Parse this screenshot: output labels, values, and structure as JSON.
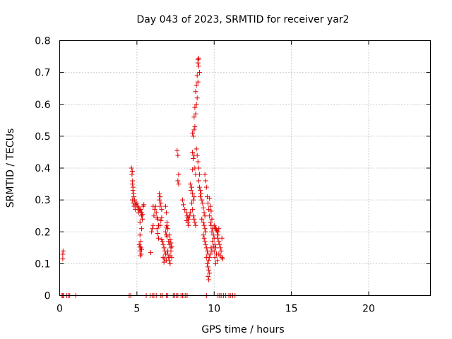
{
  "chart_data": {
    "type": "scatter",
    "title": "Day 043 of 2023, SRMTID for receiver yar2",
    "xlabel": "GPS time / hours",
    "ylabel": "SRMTID / TECUs",
    "xlim": [
      0,
      24
    ],
    "ylim": [
      0,
      0.8
    ],
    "grid": true,
    "marker": "plus",
    "color": "#e00000",
    "x_ticks": [
      {
        "value": 0,
        "label": "0"
      },
      {
        "value": 5,
        "label": "5"
      },
      {
        "value": 10,
        "label": "10"
      },
      {
        "value": 15,
        "label": "15"
      },
      {
        "value": 20,
        "label": "20"
      }
    ],
    "y_ticks": [
      {
        "value": 0,
        "label": "0"
      },
      {
        "value": 0.1,
        "label": "0.1"
      },
      {
        "value": 0.2,
        "label": "0.2"
      },
      {
        "value": 0.3,
        "label": "0.3"
      },
      {
        "value": 0.4,
        "label": "0.4"
      },
      {
        "value": 0.5,
        "label": "0.5"
      },
      {
        "value": 0.6,
        "label": "0.6"
      },
      {
        "value": 0.7,
        "label": "0.7"
      },
      {
        "value": 0.8,
        "label": "0.8"
      }
    ],
    "series": [
      {
        "name": "yar2",
        "points": [
          [
            0.15,
            0.0
          ],
          [
            0.2,
            0.0
          ],
          [
            0.25,
            0.0
          ],
          [
            0.45,
            0.0
          ],
          [
            0.55,
            0.0
          ],
          [
            0.65,
            0.0
          ],
          [
            1.05,
            0.0
          ],
          [
            0.2,
            0.115
          ],
          [
            0.2,
            0.13
          ],
          [
            0.22,
            0.14
          ],
          [
            4.5,
            0.0
          ],
          [
            4.6,
            0.0
          ],
          [
            5.6,
            0.0
          ],
          [
            5.85,
            0.0
          ],
          [
            6.0,
            0.0
          ],
          [
            6.1,
            0.0
          ],
          [
            6.25,
            0.0
          ],
          [
            6.55,
            0.0
          ],
          [
            6.65,
            0.0
          ],
          [
            6.9,
            0.0
          ],
          [
            7.0,
            0.0
          ],
          [
            7.35,
            0.0
          ],
          [
            7.45,
            0.0
          ],
          [
            7.55,
            0.0
          ],
          [
            7.65,
            0.0
          ],
          [
            7.85,
            0.0
          ],
          [
            7.95,
            0.0
          ],
          [
            8.05,
            0.0
          ],
          [
            8.15,
            0.0
          ],
          [
            8.25,
            0.0
          ],
          [
            9.5,
            0.0
          ],
          [
            10.25,
            0.0
          ],
          [
            10.35,
            0.0
          ],
          [
            10.45,
            0.0
          ],
          [
            10.6,
            0.0
          ],
          [
            10.75,
            0.0
          ],
          [
            10.95,
            0.0
          ],
          [
            11.05,
            0.0
          ],
          [
            11.2,
            0.0
          ],
          [
            11.35,
            0.0
          ],
          [
            4.65,
            0.4
          ],
          [
            4.7,
            0.39
          ],
          [
            4.68,
            0.38
          ],
          [
            4.72,
            0.36
          ],
          [
            4.7,
            0.35
          ],
          [
            4.75,
            0.34
          ],
          [
            4.74,
            0.33
          ],
          [
            4.78,
            0.32
          ],
          [
            4.8,
            0.31
          ],
          [
            4.7,
            0.3
          ],
          [
            4.85,
            0.3
          ],
          [
            4.9,
            0.29
          ],
          [
            4.75,
            0.29
          ],
          [
            4.95,
            0.285
          ],
          [
            5.0,
            0.29
          ],
          [
            4.82,
            0.28
          ],
          [
            5.05,
            0.28
          ],
          [
            5.1,
            0.275
          ],
          [
            5.15,
            0.27
          ],
          [
            4.9,
            0.27
          ],
          [
            5.2,
            0.265
          ],
          [
            5.25,
            0.27
          ],
          [
            5.3,
            0.26
          ],
          [
            5.35,
            0.255
          ],
          [
            5.1,
            0.26
          ],
          [
            5.4,
            0.28
          ],
          [
            5.45,
            0.285
          ],
          [
            5.3,
            0.25
          ],
          [
            5.35,
            0.24
          ],
          [
            5.2,
            0.23
          ],
          [
            5.3,
            0.21
          ],
          [
            5.2,
            0.19
          ],
          [
            5.25,
            0.17
          ],
          [
            5.15,
            0.16
          ],
          [
            5.2,
            0.155
          ],
          [
            5.25,
            0.15
          ],
          [
            5.3,
            0.145
          ],
          [
            5.2,
            0.14
          ],
          [
            5.28,
            0.13
          ],
          [
            5.22,
            0.125
          ],
          [
            5.9,
            0.135
          ],
          [
            5.95,
            0.2
          ],
          [
            6.0,
            0.21
          ],
          [
            6.05,
            0.22
          ],
          [
            6.1,
            0.25
          ],
          [
            6.15,
            0.27
          ],
          [
            6.05,
            0.28
          ],
          [
            6.2,
            0.28
          ],
          [
            6.25,
            0.26
          ],
          [
            6.3,
            0.245
          ],
          [
            6.35,
            0.24
          ],
          [
            6.4,
            0.22
          ],
          [
            6.3,
            0.21
          ],
          [
            6.35,
            0.195
          ],
          [
            6.4,
            0.18
          ],
          [
            6.45,
            0.3
          ],
          [
            6.5,
            0.31
          ],
          [
            6.45,
            0.32
          ],
          [
            6.55,
            0.29
          ],
          [
            6.5,
            0.28
          ],
          [
            6.6,
            0.27
          ],
          [
            6.6,
            0.245
          ],
          [
            6.55,
            0.235
          ],
          [
            6.5,
            0.22
          ],
          [
            6.6,
            0.175
          ],
          [
            6.65,
            0.17
          ],
          [
            6.7,
            0.16
          ],
          [
            6.75,
            0.15
          ],
          [
            6.8,
            0.14
          ],
          [
            6.85,
            0.13
          ],
          [
            6.7,
            0.12
          ],
          [
            6.8,
            0.115
          ],
          [
            6.9,
            0.11
          ],
          [
            6.75,
            0.105
          ],
          [
            6.95,
            0.13
          ],
          [
            7.0,
            0.14
          ],
          [
            7.05,
            0.12
          ],
          [
            7.1,
            0.11
          ],
          [
            7.15,
            0.125
          ],
          [
            7.2,
            0.15
          ],
          [
            7.1,
            0.16
          ],
          [
            7.05,
            0.17
          ],
          [
            6.95,
            0.185
          ],
          [
            6.9,
            0.19
          ],
          [
            6.85,
            0.2
          ],
          [
            6.9,
            0.215
          ],
          [
            6.95,
            0.22
          ],
          [
            6.85,
            0.28
          ],
          [
            6.9,
            0.26
          ],
          [
            6.95,
            0.23
          ],
          [
            7.0,
            0.21
          ],
          [
            7.1,
            0.19
          ],
          [
            7.15,
            0.175
          ],
          [
            7.2,
            0.165
          ],
          [
            7.25,
            0.155
          ],
          [
            7.2,
            0.14
          ],
          [
            7.25,
            0.12
          ],
          [
            7.15,
            0.1
          ],
          [
            7.6,
            0.455
          ],
          [
            7.65,
            0.44
          ],
          [
            7.7,
            0.38
          ],
          [
            7.65,
            0.36
          ],
          [
            7.7,
            0.35
          ],
          [
            7.95,
            0.3
          ],
          [
            8.0,
            0.285
          ],
          [
            8.1,
            0.27
          ],
          [
            8.2,
            0.26
          ],
          [
            8.25,
            0.25
          ],
          [
            8.3,
            0.245
          ],
          [
            8.35,
            0.24
          ],
          [
            8.2,
            0.235
          ],
          [
            8.3,
            0.23
          ],
          [
            8.4,
            0.25
          ],
          [
            8.35,
            0.22
          ],
          [
            8.45,
            0.26
          ],
          [
            8.5,
            0.33
          ],
          [
            8.45,
            0.35
          ],
          [
            8.55,
            0.34
          ],
          [
            8.6,
            0.32
          ],
          [
            8.65,
            0.3
          ],
          [
            8.7,
            0.31
          ],
          [
            8.55,
            0.29
          ],
          [
            8.6,
            0.27
          ],
          [
            8.65,
            0.25
          ],
          [
            8.7,
            0.24
          ],
          [
            8.75,
            0.23
          ],
          [
            8.8,
            0.22
          ],
          [
            8.6,
            0.45
          ],
          [
            8.65,
            0.43
          ],
          [
            8.7,
            0.44
          ],
          [
            8.75,
            0.4
          ],
          [
            8.6,
            0.395
          ],
          [
            8.8,
            0.38
          ],
          [
            8.65,
            0.5
          ],
          [
            8.7,
            0.52
          ],
          [
            8.75,
            0.53
          ],
          [
            8.6,
            0.51
          ],
          [
            8.7,
            0.56
          ],
          [
            8.8,
            0.57
          ],
          [
            8.75,
            0.59
          ],
          [
            8.85,
            0.6
          ],
          [
            8.9,
            0.62
          ],
          [
            8.8,
            0.64
          ],
          [
            8.85,
            0.66
          ],
          [
            8.95,
            0.67
          ],
          [
            8.9,
            0.69
          ],
          [
            9.0,
            0.72
          ],
          [
            8.95,
            0.73
          ],
          [
            9.0,
            0.745
          ],
          [
            8.95,
            0.74
          ],
          [
            9.05,
            0.7
          ],
          [
            8.85,
            0.46
          ],
          [
            8.9,
            0.44
          ],
          [
            8.95,
            0.42
          ],
          [
            9.0,
            0.4
          ],
          [
            9.05,
            0.38
          ],
          [
            9.0,
            0.36
          ],
          [
            9.05,
            0.34
          ],
          [
            9.1,
            0.33
          ],
          [
            9.15,
            0.32
          ],
          [
            9.1,
            0.31
          ],
          [
            9.2,
            0.3
          ],
          [
            9.25,
            0.29
          ],
          [
            9.3,
            0.275
          ],
          [
            9.35,
            0.26
          ],
          [
            9.4,
            0.25
          ],
          [
            9.2,
            0.24
          ],
          [
            9.3,
            0.23
          ],
          [
            9.35,
            0.22
          ],
          [
            9.4,
            0.21
          ],
          [
            9.45,
            0.2
          ],
          [
            9.3,
            0.19
          ],
          [
            9.35,
            0.18
          ],
          [
            9.4,
            0.17
          ],
          [
            9.45,
            0.16
          ],
          [
            9.5,
            0.15
          ],
          [
            9.55,
            0.14
          ],
          [
            9.6,
            0.13
          ],
          [
            9.5,
            0.12
          ],
          [
            9.65,
            0.11
          ],
          [
            9.55,
            0.1
          ],
          [
            9.6,
            0.09
          ],
          [
            9.65,
            0.08
          ],
          [
            9.7,
            0.07
          ],
          [
            9.6,
            0.06
          ],
          [
            9.65,
            0.05
          ],
          [
            9.4,
            0.38
          ],
          [
            9.45,
            0.36
          ],
          [
            9.5,
            0.34
          ],
          [
            9.55,
            0.31
          ],
          [
            9.6,
            0.29
          ],
          [
            9.65,
            0.27
          ],
          [
            9.7,
            0.305
          ],
          [
            9.75,
            0.28
          ],
          [
            9.8,
            0.265
          ],
          [
            9.7,
            0.25
          ],
          [
            9.85,
            0.24
          ],
          [
            9.75,
            0.23
          ],
          [
            9.8,
            0.22
          ],
          [
            9.9,
            0.21
          ],
          [
            9.85,
            0.2
          ],
          [
            9.95,
            0.19
          ],
          [
            10.0,
            0.18
          ],
          [
            9.9,
            0.17
          ],
          [
            10.05,
            0.16
          ],
          [
            9.95,
            0.155
          ],
          [
            10.1,
            0.15
          ],
          [
            10.0,
            0.14
          ],
          [
            10.15,
            0.13
          ],
          [
            10.05,
            0.12
          ],
          [
            10.2,
            0.11
          ],
          [
            10.1,
            0.1
          ],
          [
            9.8,
            0.15
          ],
          [
            9.85,
            0.14
          ],
          [
            9.75,
            0.13
          ],
          [
            9.7,
            0.12
          ],
          [
            10.0,
            0.22
          ],
          [
            10.05,
            0.215
          ],
          [
            10.1,
            0.21
          ],
          [
            10.15,
            0.205
          ],
          [
            10.2,
            0.2
          ],
          [
            10.25,
            0.19
          ],
          [
            10.3,
            0.21
          ],
          [
            10.2,
            0.18
          ],
          [
            10.3,
            0.17
          ],
          [
            10.35,
            0.16
          ],
          [
            10.4,
            0.15
          ],
          [
            10.45,
            0.14
          ],
          [
            10.5,
            0.18
          ],
          [
            10.5,
            0.12
          ],
          [
            10.4,
            0.125
          ],
          [
            10.55,
            0.115
          ],
          [
            10.3,
            0.13
          ],
          [
            10.25,
            0.2
          ]
        ]
      }
    ]
  }
}
